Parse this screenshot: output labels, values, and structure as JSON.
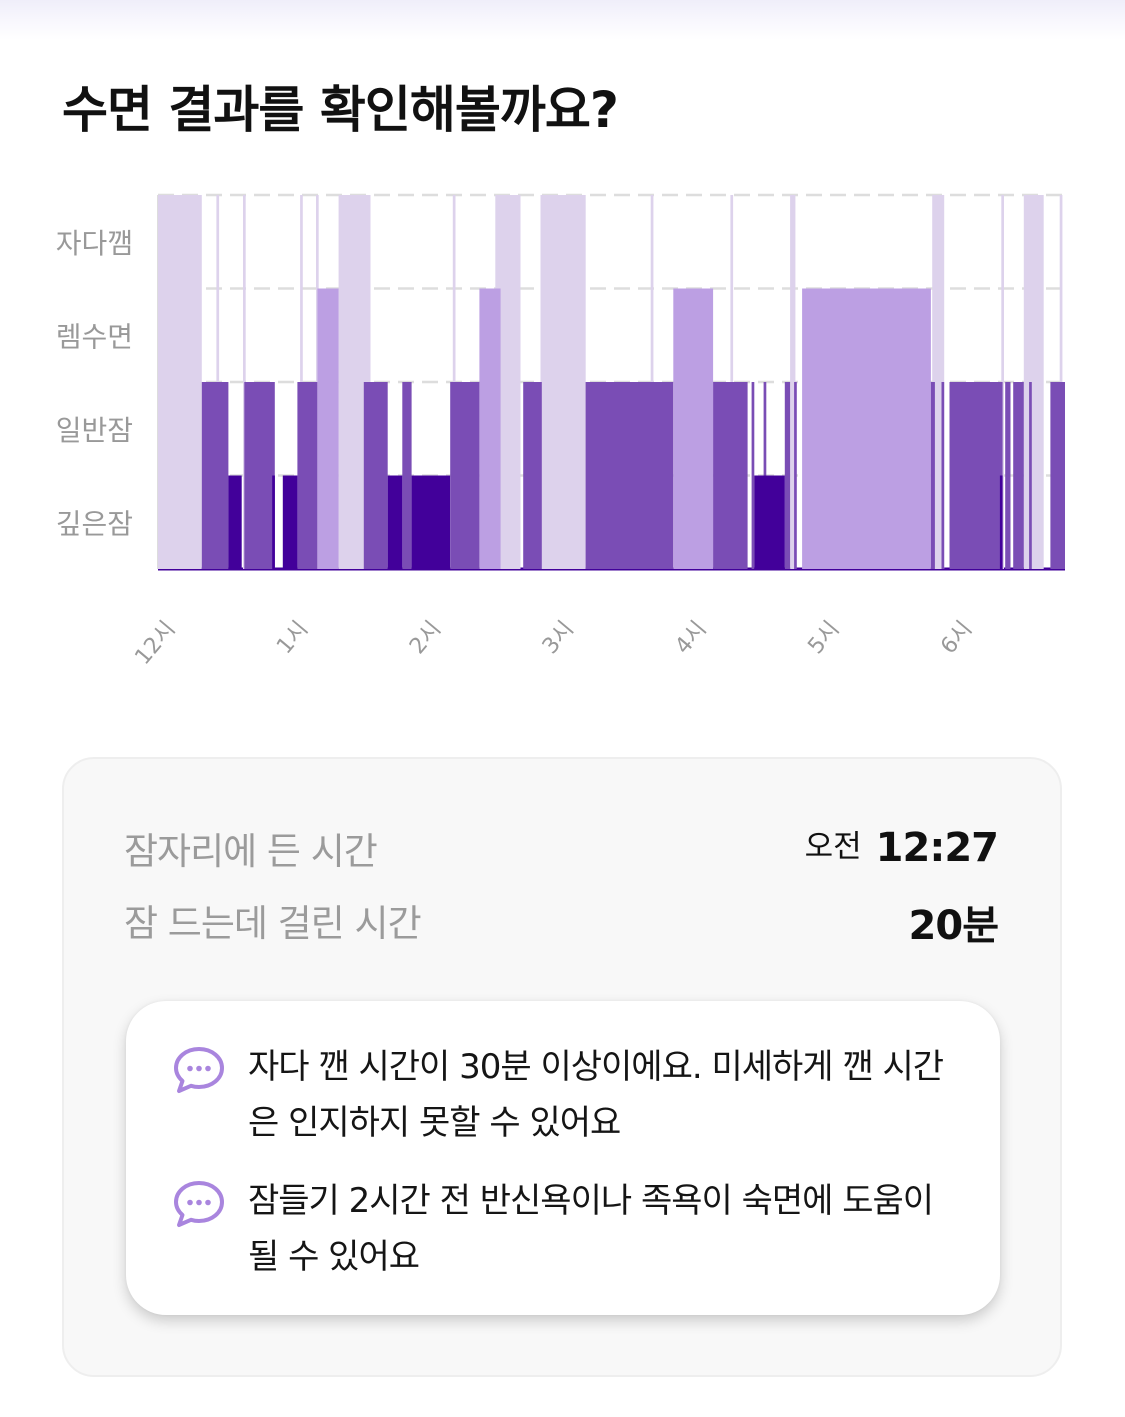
{
  "title": "수면 결과를 확인해볼까요?",
  "colors": {
    "awake": "#ddd2ec",
    "rem": "#bc9fe3",
    "light": "#7a4db5",
    "deep": "#42009a",
    "grid": "#dddddd",
    "label": "#999999",
    "tip_icon": "#a985de"
  },
  "chart_data": {
    "type": "bar",
    "subtype": "hypnogram",
    "title": "",
    "xlabel": "",
    "ylabel": "",
    "x_unit": "hours since midnight",
    "xlim": [
      0.0,
      6.83
    ],
    "stages": [
      "자다깸",
      "렘수면",
      "일반잠",
      "깊은잠"
    ],
    "x_tick_values": [
      0,
      1,
      2,
      3,
      4,
      5,
      6
    ],
    "x_tick_labels": [
      "12시",
      "1시",
      "2시",
      "3시",
      "4시",
      "5시",
      "6시"
    ],
    "grid": true,
    "legend": "none",
    "segments": [
      {
        "stage": "자다깸",
        "start": 0.0,
        "end": 0.33
      },
      {
        "stage": "자다깸",
        "start": 0.44,
        "end": 0.46
      },
      {
        "stage": "자다깸",
        "start": 0.64,
        "end": 0.66
      },
      {
        "stage": "자다깸",
        "start": 1.07,
        "end": 1.09
      },
      {
        "stage": "자다깸",
        "start": 1.19,
        "end": 1.21
      },
      {
        "stage": "자다깸",
        "start": 1.36,
        "end": 1.6
      },
      {
        "stage": "자다깸",
        "start": 2.22,
        "end": 2.24
      },
      {
        "stage": "자다깸",
        "start": 2.54,
        "end": 2.73
      },
      {
        "stage": "자다깸",
        "start": 2.88,
        "end": 3.22
      },
      {
        "stage": "자다깸",
        "start": 3.71,
        "end": 3.73
      },
      {
        "stage": "자다깸",
        "start": 4.31,
        "end": 4.33
      },
      {
        "stage": "자다깸",
        "start": 4.76,
        "end": 4.8
      },
      {
        "stage": "자다깸",
        "start": 5.83,
        "end": 5.92
      },
      {
        "stage": "자다깸",
        "start": 6.35,
        "end": 6.37
      },
      {
        "stage": "자다깸",
        "start": 6.52,
        "end": 6.67
      },
      {
        "stage": "자다깸",
        "start": 6.79,
        "end": 6.81
      },
      {
        "stage": "렘수면",
        "start": 1.2,
        "end": 1.36
      },
      {
        "stage": "렘수면",
        "start": 2.42,
        "end": 2.58
      },
      {
        "stage": "렘수면",
        "start": 3.88,
        "end": 4.18
      },
      {
        "stage": "렘수면",
        "start": 4.85,
        "end": 5.82
      },
      {
        "stage": "일반잠",
        "start": 0.33,
        "end": 0.53
      },
      {
        "stage": "일반잠",
        "start": 0.65,
        "end": 0.88
      },
      {
        "stage": "일반잠",
        "start": 1.05,
        "end": 1.2
      },
      {
        "stage": "일반잠",
        "start": 1.55,
        "end": 1.73
      },
      {
        "stage": "일반잠",
        "start": 1.84,
        "end": 1.91
      },
      {
        "stage": "일반잠",
        "start": 2.2,
        "end": 2.42
      },
      {
        "stage": "일반잠",
        "start": 2.75,
        "end": 2.89
      },
      {
        "stage": "일반잠",
        "start": 3.22,
        "end": 3.88
      },
      {
        "stage": "일반잠",
        "start": 4.18,
        "end": 4.44
      },
      {
        "stage": "일반잠",
        "start": 4.47,
        "end": 4.49
      },
      {
        "stage": "일반잠",
        "start": 4.56,
        "end": 4.58
      },
      {
        "stage": "일반잠",
        "start": 4.72,
        "end": 4.76
      },
      {
        "stage": "일반잠",
        "start": 4.79,
        "end": 4.81
      },
      {
        "stage": "일반잠",
        "start": 5.82,
        "end": 5.85
      },
      {
        "stage": "일반잠",
        "start": 5.9,
        "end": 5.92
      },
      {
        "stage": "일반잠",
        "start": 5.96,
        "end": 6.36
      },
      {
        "stage": "일반잠",
        "start": 6.38,
        "end": 6.42
      },
      {
        "stage": "일반잠",
        "start": 6.44,
        "end": 6.52
      },
      {
        "stage": "일반잠",
        "start": 6.56,
        "end": 6.58
      },
      {
        "stage": "일반잠",
        "start": 6.72,
        "end": 6.83
      },
      {
        "stage": "깊은잠",
        "start": 0.53,
        "end": 0.63
      },
      {
        "stage": "깊은잠",
        "start": 0.86,
        "end": 0.88
      },
      {
        "stage": "깊은잠",
        "start": 0.94,
        "end": 1.05
      },
      {
        "stage": "깊은잠",
        "start": 1.73,
        "end": 1.84
      },
      {
        "stage": "깊은잠",
        "start": 1.91,
        "end": 2.2
      },
      {
        "stage": "깊은잠",
        "start": 4.49,
        "end": 4.72
      },
      {
        "stage": "깊은잠",
        "start": 6.34,
        "end": 6.36
      }
    ]
  },
  "summary": {
    "bedtime_label": "잠자리에 든 시간",
    "bedtime_ampm": "오전",
    "bedtime_value": "12:27",
    "latency_label": "잠 드는데 걸린 시간",
    "latency_value": "20분"
  },
  "tips": [
    {
      "icon": "chat-bubble-icon",
      "text": "자다 깬 시간이 30분 이상이에요. 미세하게 깬 시간은 인지하지 못할 수 있어요"
    },
    {
      "icon": "chat-bubble-icon",
      "text": "잠들기 2시간 전 반신욕이나 족욕이 숙면에 도움이 될 수 있어요"
    }
  ]
}
